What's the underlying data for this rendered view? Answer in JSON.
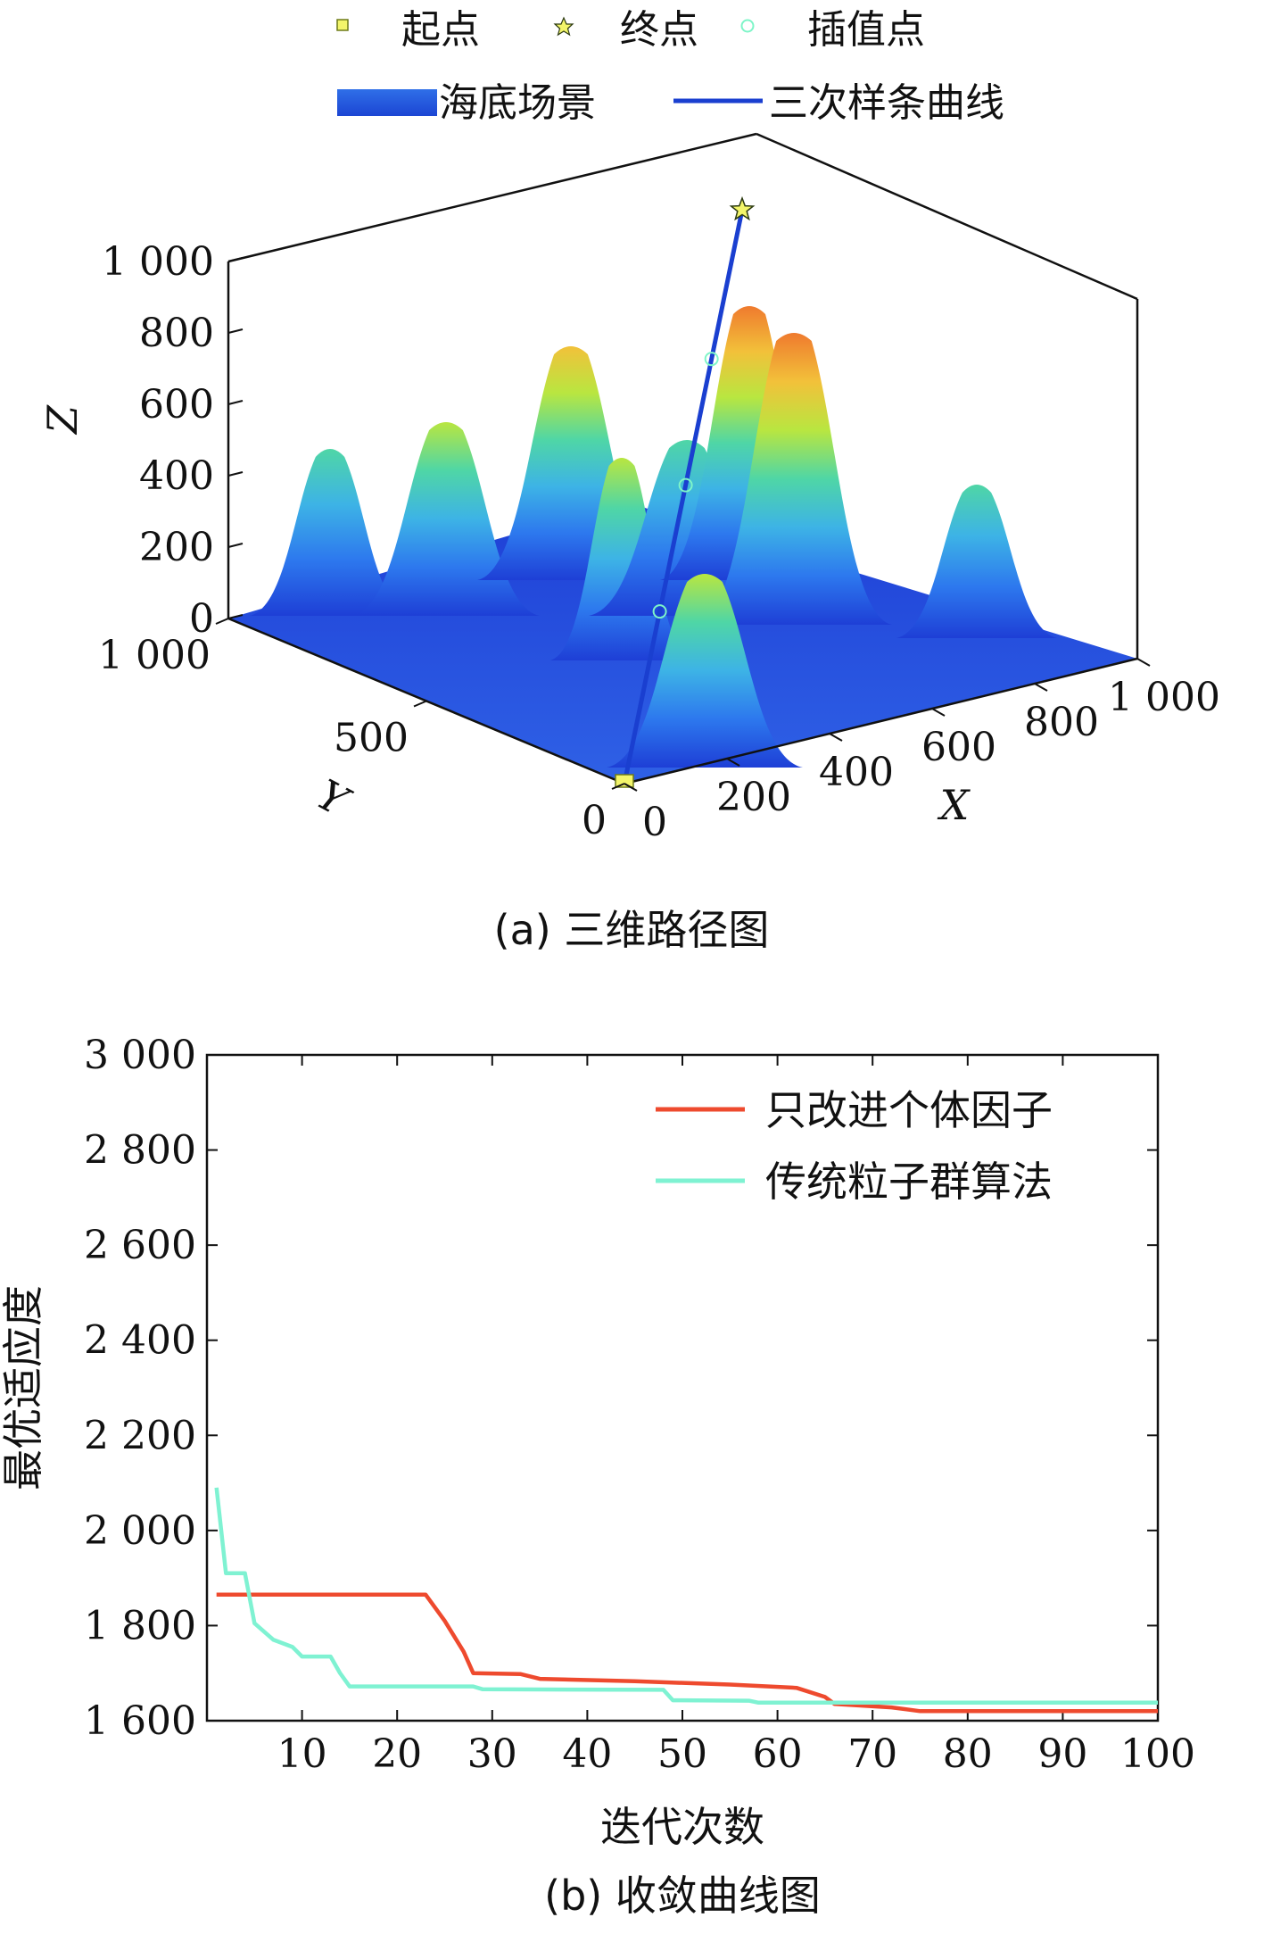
{
  "chart_data": [
    {
      "type": "surface3d",
      "caption": "(a) 三维路径图",
      "legend": {
        "row1": [
          {
            "label": "起点",
            "marker": "square",
            "color": "#f3f56a"
          },
          {
            "label": "终点",
            "marker": "star",
            "color": "#f3f56a"
          },
          {
            "label": "插值点",
            "marker": "circle",
            "color": "#7ef5c8"
          }
        ],
        "row2": [
          {
            "label": "海底场景",
            "marker": "patch",
            "color": "#2f6fe8"
          },
          {
            "label": "三次样条曲线",
            "marker": "line",
            "color": "#1a3fd0"
          }
        ]
      },
      "xlabel": "X",
      "ylabel": "Y",
      "zlabel": "Z",
      "xlim": [
        0,
        1000
      ],
      "ylim": [
        0,
        1000
      ],
      "zlim": [
        0,
        1000
      ],
      "x_ticks": [
        "0",
        "200",
        "400",
        "600",
        "800",
        "1 000"
      ],
      "y_ticks": [
        "0",
        "500",
        "1 000"
      ],
      "z_ticks": [
        "0",
        "200",
        "400",
        "600",
        "800",
        "1 000"
      ],
      "path": {
        "start": {
          "x": 0,
          "y": 0,
          "z": 0
        },
        "end": {
          "x": 1000,
          "y": 1000,
          "z": 1000
        },
        "interpolation_points": [
          {
            "x": 280,
            "y": 280,
            "z": 300
          },
          {
            "x": 520,
            "y": 520,
            "z": 520
          },
          {
            "x": 740,
            "y": 740,
            "z": 740
          }
        ]
      },
      "colormap": [
        "#1e3fd6",
        "#2d78ee",
        "#3db3e6",
        "#4fd6a6",
        "#b9e640",
        "#f2c13a",
        "#ef7a2e"
      ]
    },
    {
      "type": "line",
      "caption": "(b) 收敛曲线图",
      "xlabel": "迭代次数",
      "ylabel": "最优适应度",
      "xlim": [
        0,
        100
      ],
      "ylim": [
        1600,
        3000
      ],
      "x_ticks": [
        10,
        20,
        30,
        40,
        50,
        60,
        70,
        80,
        90,
        100
      ],
      "y_ticks": [
        1600,
        1800,
        2000,
        2200,
        2400,
        2600,
        2800,
        3000
      ],
      "y_tick_labels": [
        "1 600",
        "1 800",
        "2 000",
        "2 200",
        "2 400",
        "2 600",
        "2 800",
        "3 000"
      ],
      "legend_position": "top-right",
      "series": [
        {
          "name": "只改进个体因子",
          "color": "#ee4a2e",
          "points": [
            [
              1,
              1865
            ],
            [
              23,
              1865
            ],
            [
              25,
              1810
            ],
            [
              27,
              1745
            ],
            [
              28,
              1700
            ],
            [
              33,
              1698
            ],
            [
              35,
              1688
            ],
            [
              45,
              1683
            ],
            [
              55,
              1676
            ],
            [
              62,
              1669
            ],
            [
              65,
              1650
            ],
            [
              66,
              1635
            ],
            [
              72,
              1628
            ],
            [
              75,
              1620
            ],
            [
              100,
              1620
            ]
          ]
        },
        {
          "name": "传统粒子群算法",
          "color": "#7ff2d2",
          "points": [
            [
              1,
              2090
            ],
            [
              2,
              1910
            ],
            [
              4,
              1910
            ],
            [
              5,
              1805
            ],
            [
              7,
              1770
            ],
            [
              9,
              1755
            ],
            [
              10,
              1735
            ],
            [
              13,
              1735
            ],
            [
              14,
              1700
            ],
            [
              15,
              1672
            ],
            [
              28,
              1672
            ],
            [
              29,
              1666
            ],
            [
              48,
              1665
            ],
            [
              49,
              1643
            ],
            [
              57,
              1642
            ],
            [
              58,
              1638
            ],
            [
              100,
              1638
            ]
          ]
        }
      ]
    }
  ]
}
